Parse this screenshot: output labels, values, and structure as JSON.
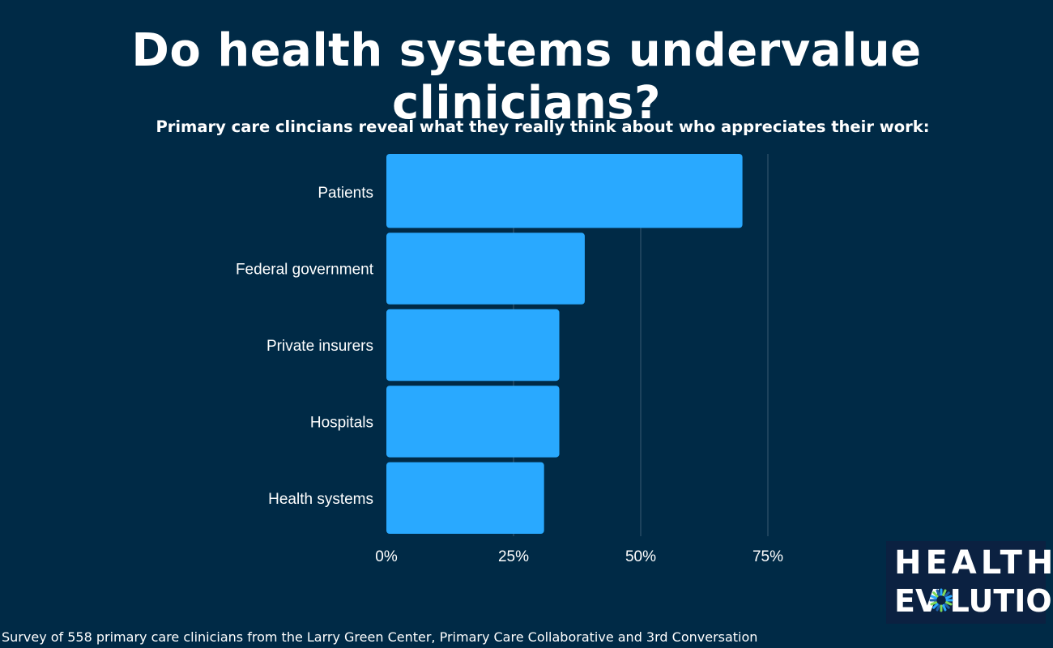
{
  "chart_data": {
    "type": "bar",
    "orientation": "horizontal",
    "title": "Do health systems undervalue clinicians?",
    "subtitle": "Primary care clincians reveal what they really think about who appreciates their work:",
    "categories": [
      "Patients",
      "Federal government",
      "Private insurers",
      "Hospitals",
      "Health systems"
    ],
    "values": [
      70,
      39,
      34,
      34,
      31
    ],
    "xlim": [
      0,
      75
    ],
    "xticks": [
      0,
      25,
      50,
      75
    ],
    "xtick_labels": [
      "0%",
      "25%",
      "50%",
      "75%"
    ],
    "grid": "vertical",
    "legend": "none",
    "colors": {
      "background": "#002a46",
      "bar": "#29a9ff",
      "grid": "#3a5a72",
      "text": "#ffffff"
    }
  },
  "footnote": "Survey of 558 primary care clinicians from the Larry Green Center, Primary Care Collaborative and 3rd Conversation",
  "logo": {
    "line1": "HEALTH",
    "line2": "EV LUTION",
    "text": "HEALTH EVOLUTION",
    "background": "#0b2141",
    "accent_colors": [
      "#29a9ff",
      "#7ed957",
      "#1d5fa8"
    ]
  }
}
